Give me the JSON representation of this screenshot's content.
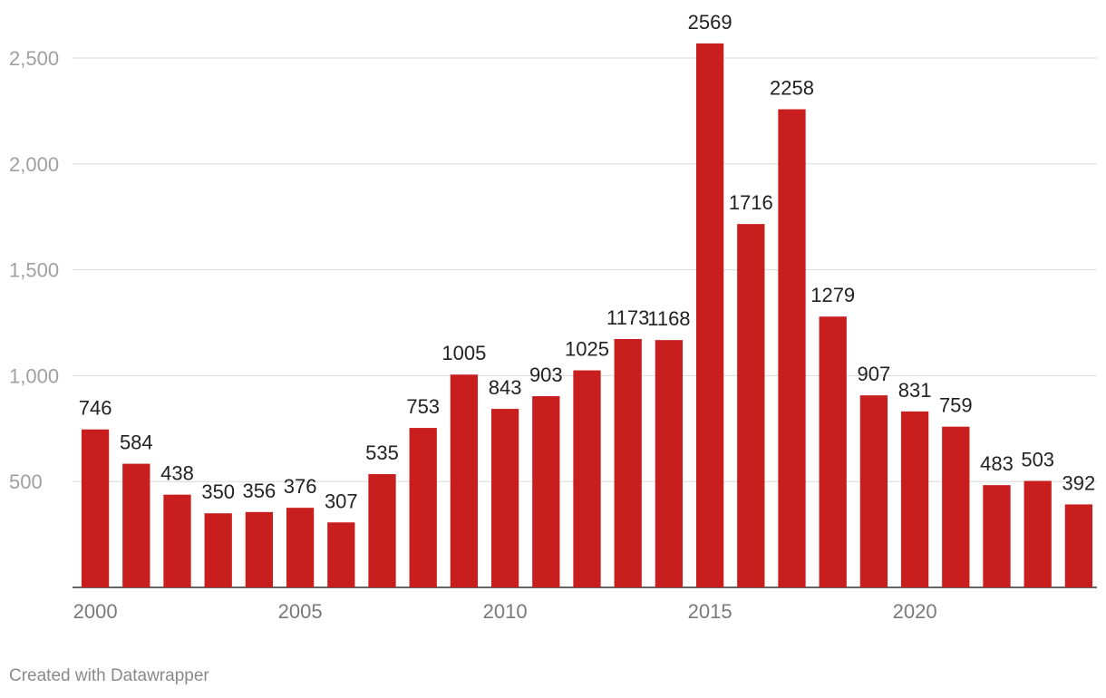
{
  "chart_data": {
    "type": "bar",
    "title": "",
    "xlabel": "",
    "ylabel": "",
    "categories": [
      "2000",
      "2001",
      "2002",
      "2003",
      "2004",
      "2005",
      "2006",
      "2007",
      "2008",
      "2009",
      "2010",
      "2011",
      "2012",
      "2013",
      "2014",
      "2015",
      "2016",
      "2017",
      "2018",
      "2019",
      "2020",
      "2021",
      "2022",
      "2023",
      "2024"
    ],
    "values": [
      746,
      584,
      438,
      350,
      356,
      376,
      307,
      535,
      753,
      1005,
      843,
      903,
      1025,
      1173,
      1168,
      2569,
      1716,
      2258,
      1279,
      907,
      831,
      759,
      483,
      503,
      392
    ],
    "ylim": [
      0,
      2500
    ],
    "y_ticks": [
      500,
      1000,
      1500,
      2000,
      2500
    ],
    "y_tick_labels": [
      "500",
      "1,000",
      "1,500",
      "2,000",
      "2,500"
    ],
    "x_tick_labels": [
      "2000",
      "2005",
      "2010",
      "2015",
      "2020"
    ],
    "bar_color": "#c81e1e",
    "grid": true
  },
  "footer": {
    "credit": "Created with Datawrapper"
  }
}
